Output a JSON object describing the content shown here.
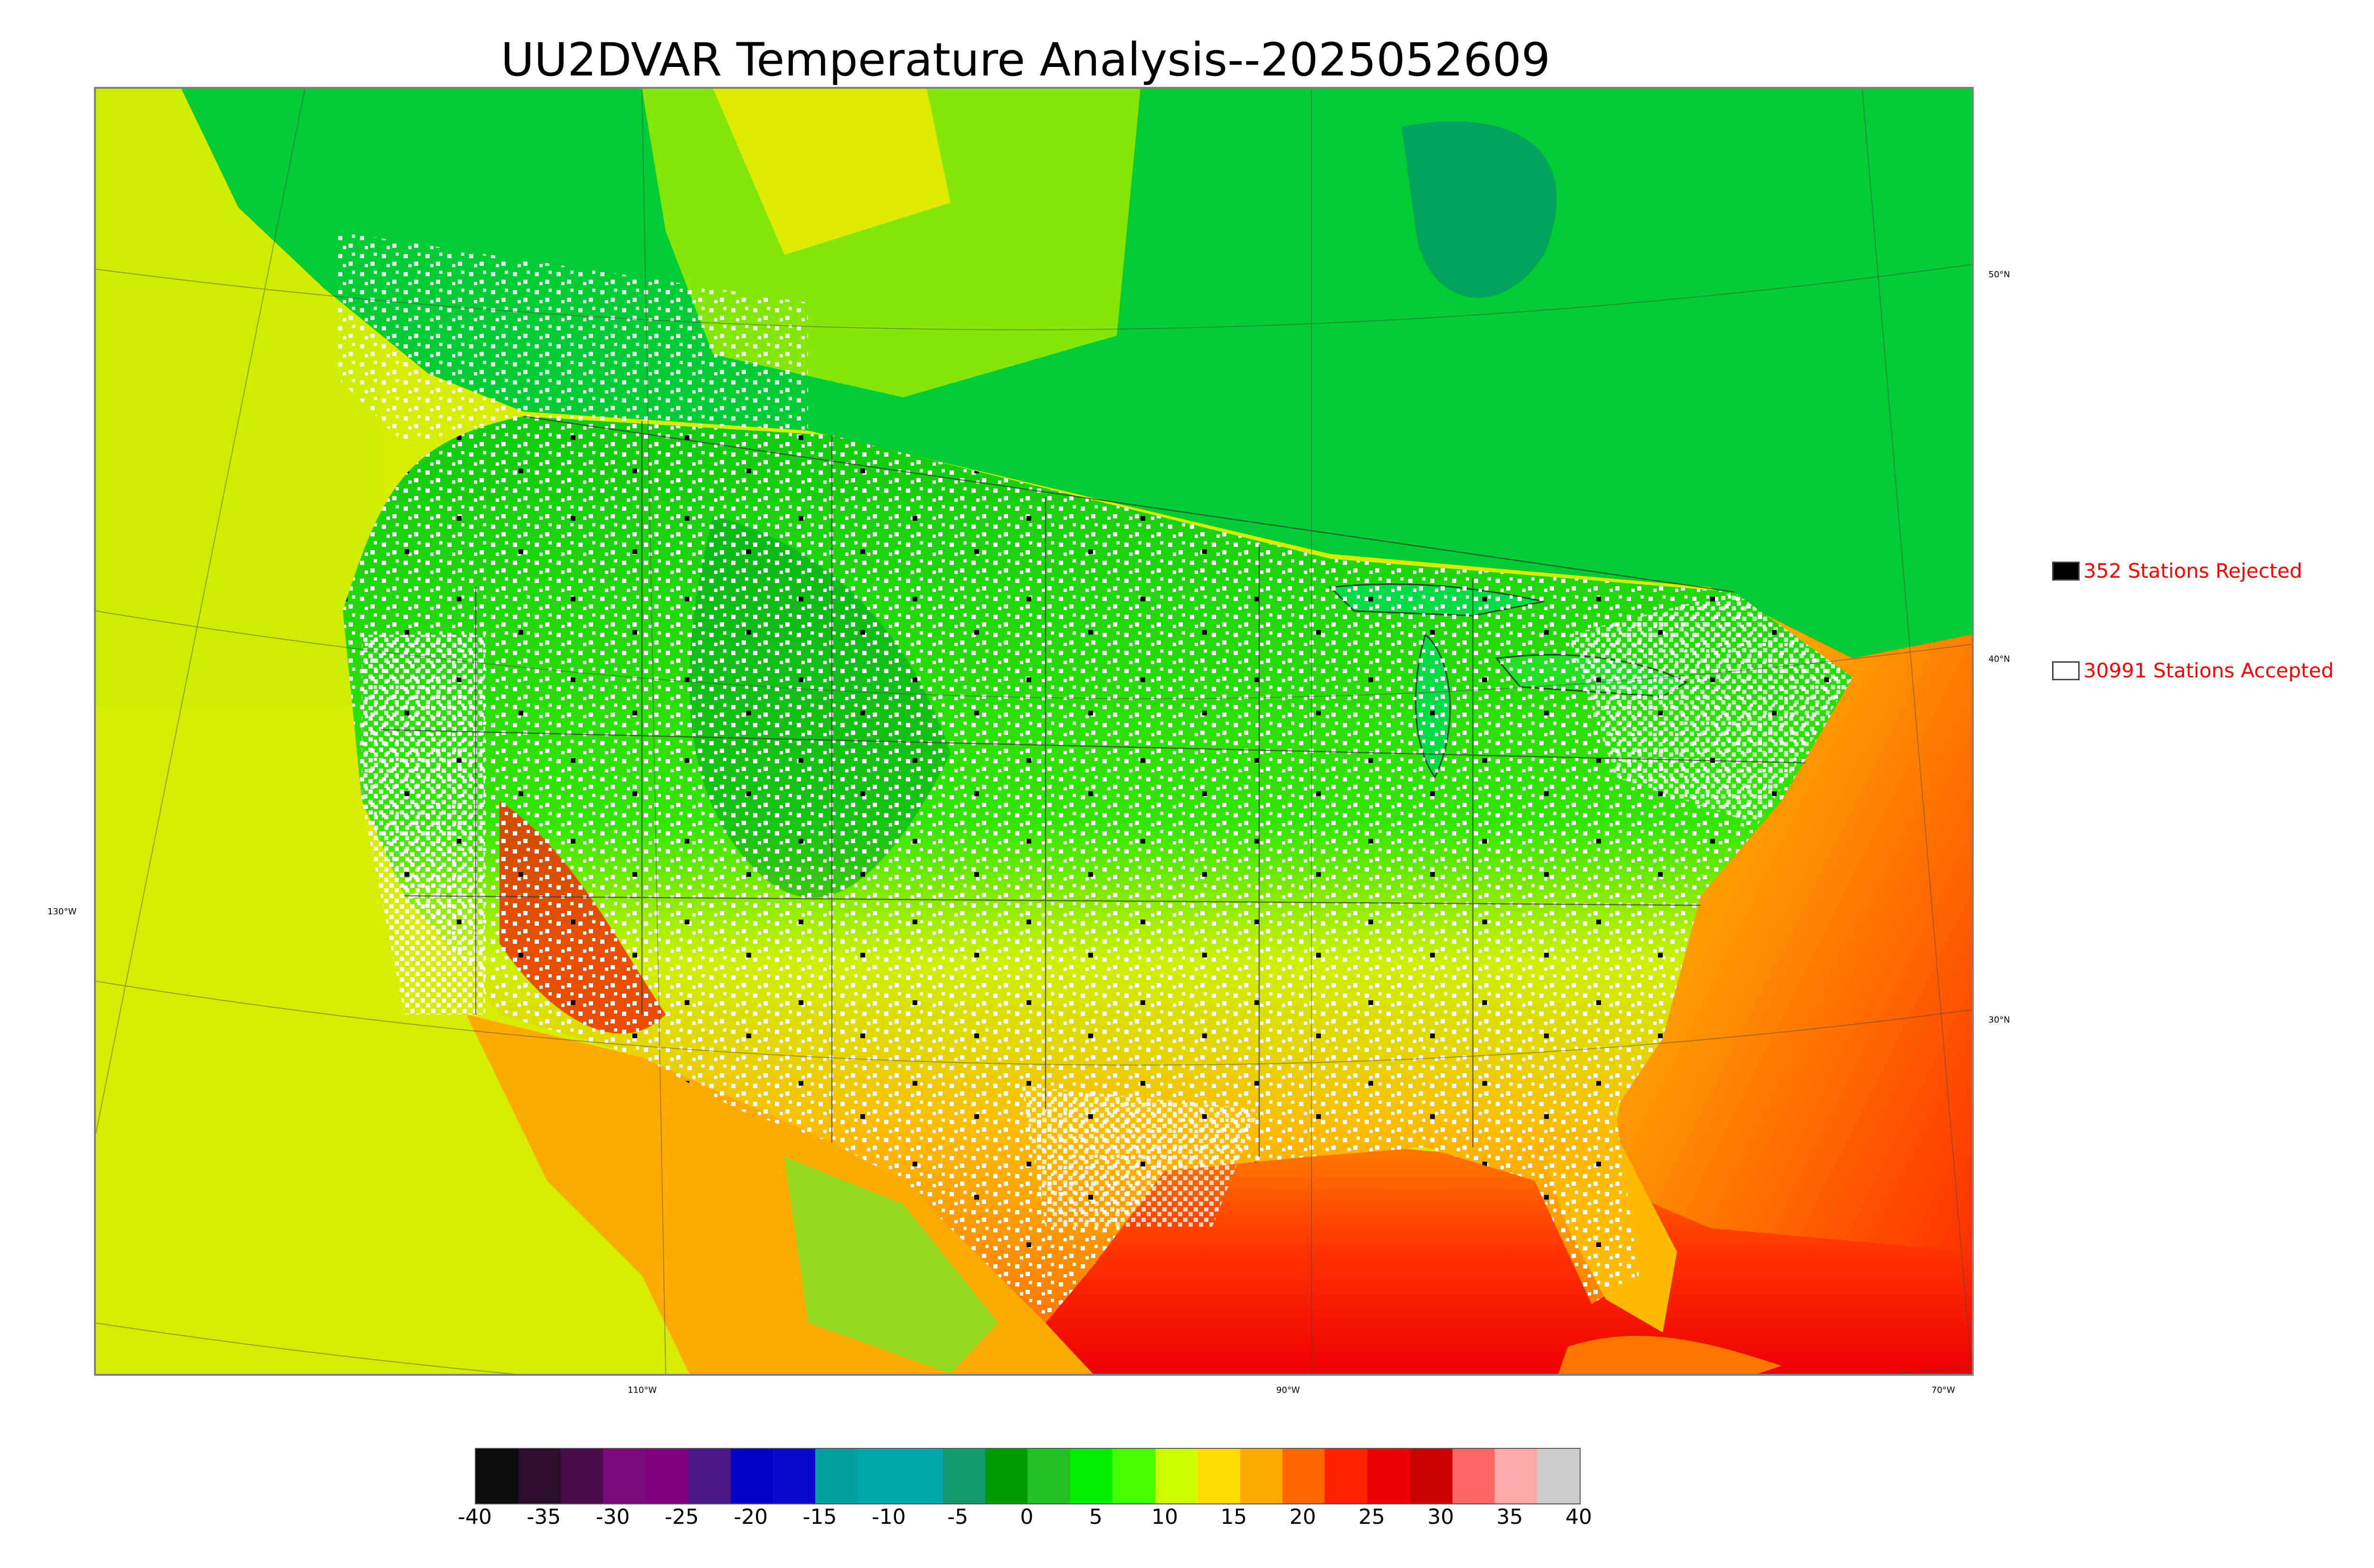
{
  "title": "UU2DVAR Temperature Analysis--2025052609",
  "longitude_labels": [
    "110°W",
    "90°W",
    "70°W"
  ],
  "latitude_labels": [
    "130°W",
    "50°N",
    "40°N",
    "30°N"
  ],
  "legend": {
    "rejected": {
      "label": "352 Stations Rejected",
      "color": "#000000"
    },
    "accepted": {
      "label": "30991 Stations Accepted",
      "color": "#ffffff"
    }
  },
  "colorbar": {
    "ticks": [
      "-40",
      "-35",
      "-30",
      "-25",
      "-20",
      "-15",
      "-10",
      "-5",
      "0",
      "5",
      "10",
      "15",
      "20",
      "25",
      "30",
      "35",
      "40"
    ],
    "colors": [
      "#0b0b0b",
      "#2a0d2a",
      "#4b0a4b",
      "#7a0a7a",
      "#800080",
      "#4b1a8a",
      "#0000c8",
      "#0a0acc",
      "#00a0a0",
      "#00aaaa",
      "#00aaaa",
      "#129a6e",
      "#009900",
      "#22c022",
      "#00ee00",
      "#44ff00",
      "#ccff00",
      "#ffdd00",
      "#ffaa00",
      "#ff6600",
      "#ff2200",
      "#ee0000",
      "#cc0000",
      "#ff6666",
      "#ffaaaa",
      "#cccccc"
    ]
  },
  "colors": {
    "land_cool": "#1ed01e",
    "land_mild": "#88e600",
    "land_warm": "#ffd000",
    "ocean_warm": "#ff3300",
    "ocean_pacific": "#d8ec00",
    "canada": "#00cc33"
  }
}
